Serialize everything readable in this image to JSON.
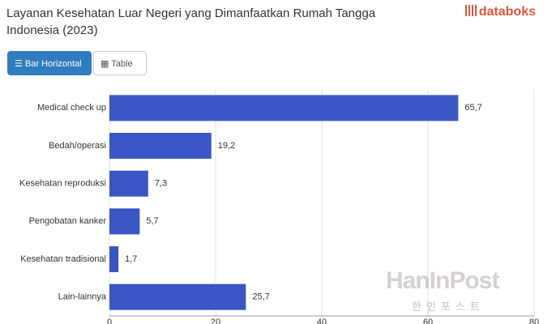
{
  "header": {
    "title": "Layanan Kesehatan Luar Negeri yang Dimanfaatkan Rumah Tangga Indonesia (2023)",
    "logo": "databoks"
  },
  "controls": [
    "Bar Horizontal",
    "Table"
  ],
  "chart_data": {
    "type": "bar",
    "orientation": "horizontal",
    "categories": [
      "Medical check up",
      "Bedah/operasi",
      "Kesehatan reproduksi",
      "Pengobatan kanker",
      "Kesehatan tradisional",
      "Lain-lainnya"
    ],
    "values": [
      65.7,
      19.2,
      7.3,
      5.7,
      1.7,
      25.7
    ],
    "value_labels": [
      "65,7",
      "19,2",
      "7,3",
      "5,7",
      "1,7",
      "25,7"
    ],
    "color": "#3a56c5",
    "xlim": [
      0,
      80
    ],
    "xticks": [
      0,
      20,
      40,
      60,
      80
    ],
    "grid": true
  },
  "watermark": {
    "title": "HanInPost",
    "subtitle": "한인포스트"
  }
}
